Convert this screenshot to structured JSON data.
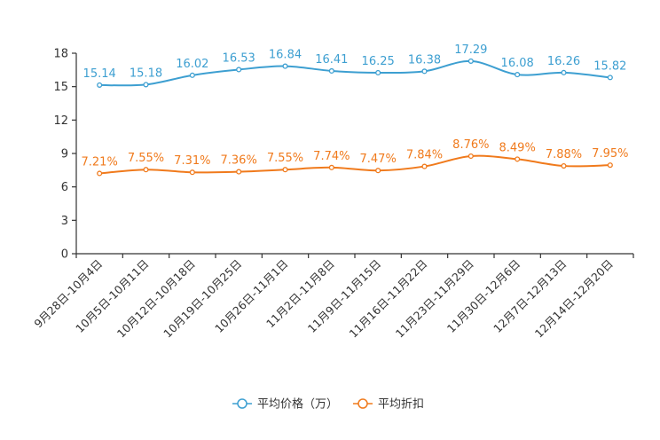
{
  "chart_data": {
    "type": "line",
    "categories": [
      "9月28日-10月4日",
      "10月5日-10月11日",
      "10月12日-10月18日",
      "10月19日-10月25日",
      "10月26日-11月1日",
      "11月2日-11月8日",
      "11月9日-11月15日",
      "11月16日-11月22日",
      "11月23日-11月29日",
      "11月30日-12月6日",
      "12月7日-12月13日",
      "12月14日-12月20日"
    ],
    "series": [
      {
        "name": "平均价格（万）",
        "color": "#3d9fd1",
        "values": [
          15.14,
          15.18,
          16.02,
          16.53,
          16.84,
          16.41,
          16.25,
          16.38,
          17.29,
          16.08,
          16.26,
          15.82
        ],
        "labels": [
          "15.14",
          "15.18",
          "16.02",
          "16.53",
          "16.84",
          "16.41",
          "16.25",
          "16.38",
          "17.29",
          "16.08",
          "16.26",
          "15.82"
        ]
      },
      {
        "name": "平均折扣",
        "color": "#f07a1c",
        "values": [
          7.21,
          7.55,
          7.31,
          7.36,
          7.55,
          7.74,
          7.47,
          7.84,
          8.76,
          8.49,
          7.88,
          7.95
        ],
        "labels": [
          "7.21%",
          "7.55%",
          "7.31%",
          "7.36%",
          "7.55%",
          "7.74%",
          "7.47%",
          "7.84%",
          "8.76%",
          "8.49%",
          "7.88%",
          "7.95%"
        ]
      }
    ],
    "y_ticks": [
      0,
      3,
      6,
      9,
      12,
      15,
      18
    ],
    "ylim": [
      0,
      18
    ],
    "legend_position": "bottom-center",
    "title": "",
    "xlabel": "",
    "ylabel": ""
  }
}
